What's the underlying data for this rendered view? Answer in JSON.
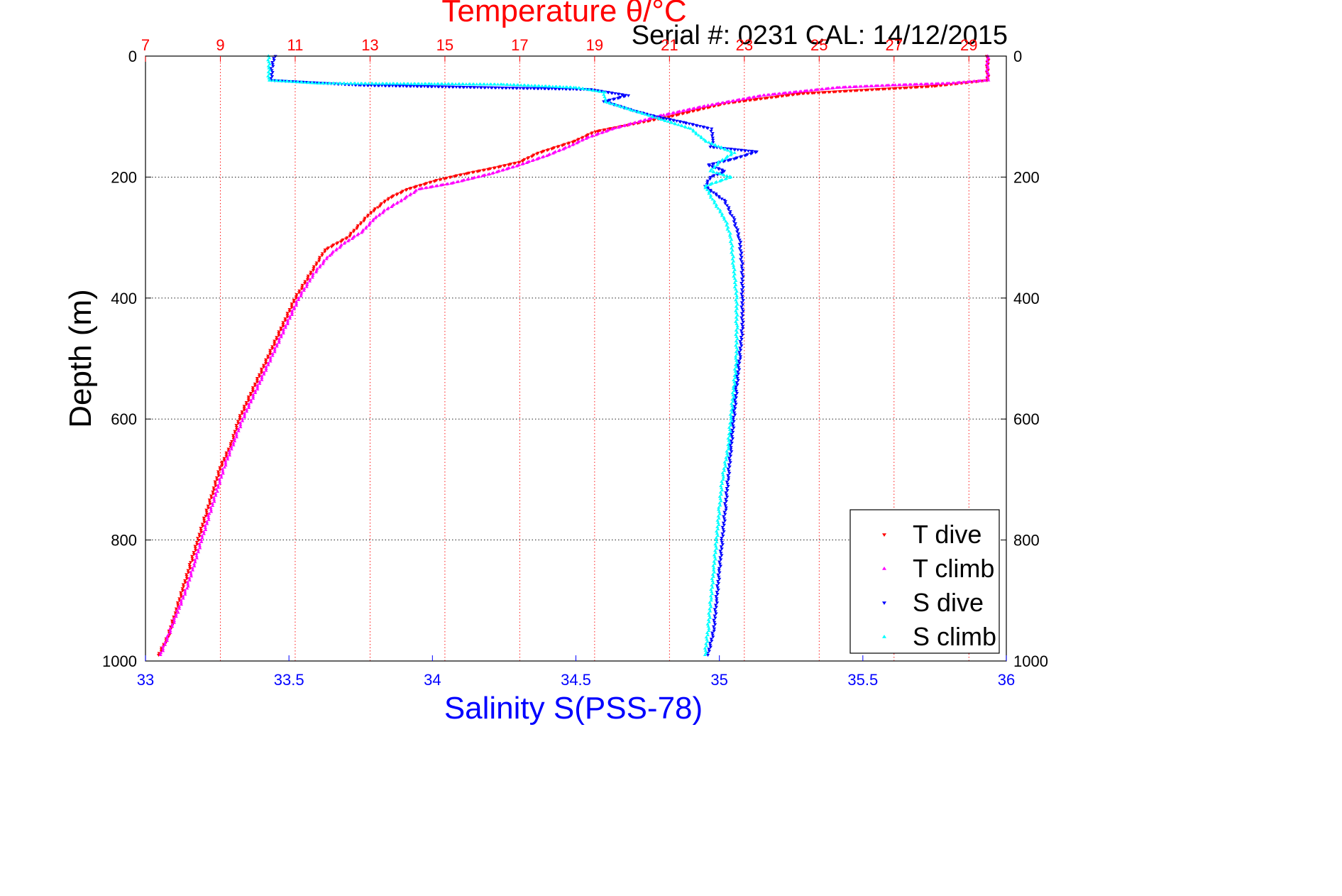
{
  "chart_data": {
    "type": "scatter",
    "title": "Temperature θ/°C",
    "subtitle": "Serial #: 0231  CAL: 14/12/2015",
    "xlabel": "Salinity S(PSS-78)",
    "ylabel": "Depth (m)",
    "ylim": [
      0,
      1000
    ],
    "y_reversed": true,
    "y_ticks": [
      0,
      200,
      400,
      600,
      800,
      1000
    ],
    "temp_axis": {
      "range": [
        7,
        30
      ],
      "ticks": [
        7,
        9,
        11,
        13,
        15,
        17,
        19,
        21,
        23,
        25,
        27,
        29
      ],
      "color": "#ff0000",
      "position": "top"
    },
    "sal_axis": {
      "range": [
        33,
        36
      ],
      "ticks": [
        33,
        33.5,
        34,
        34.5,
        35,
        35.5,
        36
      ],
      "tick_labels": [
        "33",
        "33.5",
        "34",
        "34.5",
        "35",
        "35.5",
        "36"
      ],
      "color": "#0000ff",
      "position": "bottom"
    },
    "grid": true,
    "legend_position": "bottom-right",
    "series": [
      {
        "name": "T dive",
        "axis": "temp",
        "color": "#ff0000",
        "marker": "triangle-down",
        "points": [
          [
            29.5,
            0
          ],
          [
            29.5,
            20
          ],
          [
            29.5,
            40
          ],
          [
            28.0,
            50
          ],
          [
            26.5,
            55
          ],
          [
            24.5,
            62
          ],
          [
            22.5,
            78
          ],
          [
            21.0,
            100
          ],
          [
            19.8,
            115
          ],
          [
            19.0,
            125
          ],
          [
            18.5,
            140
          ],
          [
            17.5,
            160
          ],
          [
            17.0,
            175
          ],
          [
            16.3,
            185
          ],
          [
            15.5,
            195
          ],
          [
            14.8,
            205
          ],
          [
            14.0,
            220
          ],
          [
            13.5,
            235
          ],
          [
            13.2,
            250
          ],
          [
            13.0,
            260
          ],
          [
            12.7,
            280
          ],
          [
            12.4,
            300
          ],
          [
            11.8,
            320
          ],
          [
            11.4,
            360
          ],
          [
            11.0,
            400
          ],
          [
            10.7,
            440
          ],
          [
            10.4,
            480
          ],
          [
            10.1,
            520
          ],
          [
            9.8,
            560
          ],
          [
            9.5,
            600
          ],
          [
            9.3,
            640
          ],
          [
            9.0,
            680
          ],
          [
            8.8,
            720
          ],
          [
            8.6,
            760
          ],
          [
            8.4,
            800
          ],
          [
            8.2,
            840
          ],
          [
            8.0,
            880
          ],
          [
            7.8,
            920
          ],
          [
            7.6,
            960
          ],
          [
            7.35,
            990
          ]
        ]
      },
      {
        "name": "T climb",
        "axis": "temp",
        "color": "#ff00ff",
        "marker": "triangle-up",
        "points": [
          [
            29.5,
            0
          ],
          [
            29.5,
            20
          ],
          [
            29.5,
            40
          ],
          [
            28.5,
            45
          ],
          [
            27.0,
            48
          ],
          [
            25.5,
            52
          ],
          [
            23.5,
            65
          ],
          [
            22.0,
            82
          ],
          [
            20.8,
            98
          ],
          [
            19.5,
            120
          ],
          [
            18.8,
            135
          ],
          [
            18.3,
            150
          ],
          [
            17.7,
            165
          ],
          [
            17.0,
            180
          ],
          [
            16.2,
            195
          ],
          [
            15.2,
            210
          ],
          [
            14.3,
            220
          ],
          [
            13.8,
            240
          ],
          [
            13.4,
            255
          ],
          [
            13.1,
            270
          ],
          [
            12.8,
            290
          ],
          [
            12.3,
            310
          ],
          [
            11.9,
            330
          ],
          [
            11.5,
            360
          ],
          [
            11.1,
            400
          ],
          [
            10.8,
            440
          ],
          [
            10.5,
            480
          ],
          [
            10.2,
            520
          ],
          [
            9.9,
            560
          ],
          [
            9.6,
            600
          ],
          [
            9.35,
            640
          ],
          [
            9.1,
            680
          ],
          [
            8.9,
            720
          ],
          [
            8.7,
            760
          ],
          [
            8.5,
            800
          ],
          [
            8.3,
            840
          ],
          [
            8.1,
            880
          ],
          [
            7.85,
            920
          ],
          [
            7.6,
            960
          ],
          [
            7.4,
            990
          ]
        ]
      },
      {
        "name": "S dive",
        "axis": "sal",
        "color": "#0000ff",
        "marker": "triangle-down",
        "points": [
          [
            33.45,
            0
          ],
          [
            33.44,
            20
          ],
          [
            33.44,
            40
          ],
          [
            33.75,
            48
          ],
          [
            34.55,
            55
          ],
          [
            34.68,
            65
          ],
          [
            34.6,
            75
          ],
          [
            34.7,
            90
          ],
          [
            34.78,
            100
          ],
          [
            34.88,
            110
          ],
          [
            34.97,
            120
          ],
          [
            34.98,
            135
          ],
          [
            34.97,
            150
          ],
          [
            35.13,
            158
          ],
          [
            35.05,
            170
          ],
          [
            34.96,
            180
          ],
          [
            35.02,
            190
          ],
          [
            34.97,
            200
          ],
          [
            34.95,
            215
          ],
          [
            35.02,
            240
          ],
          [
            35.05,
            270
          ],
          [
            35.07,
            300
          ],
          [
            35.08,
            350
          ],
          [
            35.08,
            400
          ],
          [
            35.08,
            450
          ],
          [
            35.07,
            500
          ],
          [
            35.06,
            550
          ],
          [
            35.05,
            600
          ],
          [
            35.04,
            650
          ],
          [
            35.03,
            700
          ],
          [
            35.02,
            750
          ],
          [
            35.01,
            800
          ],
          [
            35.0,
            850
          ],
          [
            34.99,
            900
          ],
          [
            34.98,
            950
          ],
          [
            34.96,
            990
          ]
        ]
      },
      {
        "name": "S climb",
        "axis": "sal",
        "color": "#00ffff",
        "marker": "triangle-up",
        "points": [
          [
            33.43,
            0
          ],
          [
            33.43,
            20
          ],
          [
            33.43,
            40
          ],
          [
            33.6,
            45
          ],
          [
            34.0,
            46
          ],
          [
            34.25,
            47
          ],
          [
            34.5,
            52
          ],
          [
            34.6,
            60
          ],
          [
            34.6,
            75
          ],
          [
            34.7,
            90
          ],
          [
            34.8,
            105
          ],
          [
            34.9,
            120
          ],
          [
            34.95,
            140
          ],
          [
            35.05,
            160
          ],
          [
            35.0,
            175
          ],
          [
            34.97,
            190
          ],
          [
            35.04,
            200
          ],
          [
            34.95,
            215
          ],
          [
            34.98,
            240
          ],
          [
            35.02,
            270
          ],
          [
            35.04,
            300
          ],
          [
            35.05,
            350
          ],
          [
            35.06,
            400
          ],
          [
            35.06,
            450
          ],
          [
            35.06,
            500
          ],
          [
            35.05,
            550
          ],
          [
            35.04,
            600
          ],
          [
            35.03,
            650
          ],
          [
            35.01,
            700
          ],
          [
            35.0,
            750
          ],
          [
            34.99,
            800
          ],
          [
            34.98,
            850
          ],
          [
            34.97,
            900
          ],
          [
            34.96,
            950
          ],
          [
            34.95,
            990
          ]
        ]
      }
    ]
  }
}
